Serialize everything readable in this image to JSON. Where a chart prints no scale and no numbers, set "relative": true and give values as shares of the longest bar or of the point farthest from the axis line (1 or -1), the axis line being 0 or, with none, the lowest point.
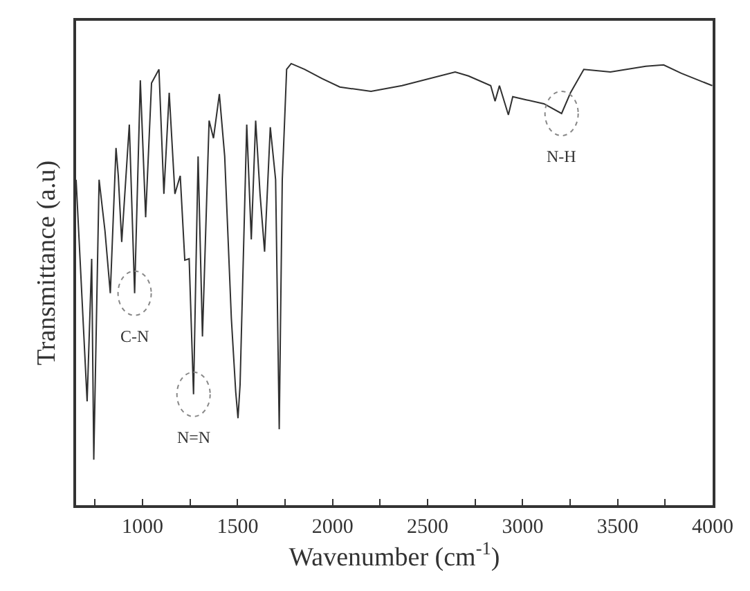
{
  "chart_data": {
    "type": "line",
    "relative": true,
    "xlabel": "Wavenumber (cm$^{-1}$)",
    "ylabel": "Transmittance (a.u)",
    "xlim": [
      650,
      4000
    ],
    "xticks": [
      {
        "value": 750,
        "label": null
      },
      1000,
      {
        "value": 1250,
        "label": null
      },
      1500,
      {
        "value": 1750,
        "label": null
      },
      2000,
      {
        "value": 2250,
        "label": null
      },
      2500,
      {
        "value": 2750,
        "label": null
      },
      3000,
      {
        "value": 3250,
        "label": null
      },
      3500,
      {
        "value": 3750,
        "label": null
      },
      4000
    ],
    "marker": "none",
    "line_style": "solid",
    "series": [
      {
        "color": "#303030",
        "x": [
          650,
          708,
          732,
          743,
          771,
          802,
          830,
          860,
          872,
          890,
          930,
          958,
          988,
          1016,
          1047,
          1086,
          1112,
          1140,
          1170,
          1198,
          1222,
          1245,
          1268,
          1292,
          1315,
          1350,
          1373,
          1404,
          1432,
          1467,
          1490,
          1502,
          1513,
          1548,
          1572,
          1595,
          1618,
          1642,
          1672,
          1700,
          1719,
          1735,
          1758,
          1782,
          1852,
          1945,
          2038,
          2202,
          2365,
          2645,
          2715,
          2832,
          2855,
          2878,
          2925,
          2948,
          3018,
          3112,
          3205,
          3252,
          3322,
          3462,
          3648,
          3742,
          3835,
          3998
        ],
        "values": [
          0.737,
          0.235,
          0.558,
          0.103,
          0.737,
          0.621,
          0.48,
          0.809,
          0.746,
          0.596,
          0.862,
          0.48,
          0.962,
          0.652,
          0.956,
          0.987,
          0.705,
          0.934,
          0.705,
          0.746,
          0.555,
          0.558,
          0.251,
          0.79,
          0.382,
          0.871,
          0.831,
          0.931,
          0.79,
          0.423,
          0.257,
          0.197,
          0.273,
          0.862,
          0.602,
          0.871,
          0.705,
          0.574,
          0.856,
          0.737,
          0.172,
          0.737,
          0.987,
          1.0,
          0.987,
          0.966,
          0.947,
          0.937,
          0.95,
          0.981,
          0.972,
          0.95,
          0.915,
          0.95,
          0.884,
          0.925,
          0.918,
          0.909,
          0.887,
          0.934,
          0.987,
          0.981,
          0.994,
          0.997,
          0.978,
          0.95
        ]
      }
    ],
    "annotations": [
      {
        "text": "C-N",
        "x": 958,
        "y": 0.48
      },
      {
        "text": "N=N",
        "x": 1268,
        "y": 0.251
      },
      {
        "text": "N-H",
        "x": 3205,
        "y": 0.887
      }
    ]
  }
}
